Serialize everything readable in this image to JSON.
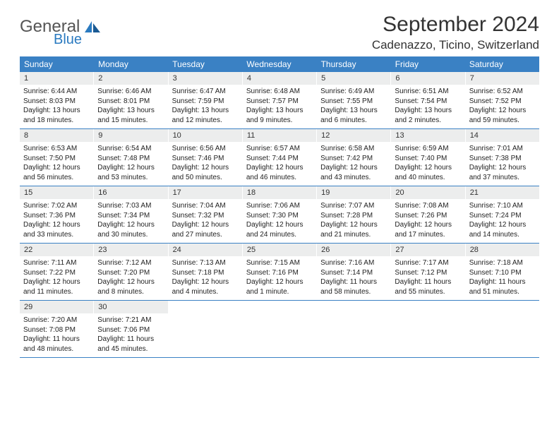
{
  "logo": {
    "main": "General",
    "sub": "Blue"
  },
  "title": "September 2024",
  "location": "Cadenazzo, Ticino, Switzerland",
  "colors": {
    "header_bg": "#3a81c4",
    "daynum_bg": "#eceded",
    "border": "#3a81c4"
  },
  "weekdays": [
    "Sunday",
    "Monday",
    "Tuesday",
    "Wednesday",
    "Thursday",
    "Friday",
    "Saturday"
  ],
  "weeks": [
    [
      {
        "n": "1",
        "sr": "6:44 AM",
        "ss": "8:03 PM",
        "dl": "13 hours and 18 minutes."
      },
      {
        "n": "2",
        "sr": "6:46 AM",
        "ss": "8:01 PM",
        "dl": "13 hours and 15 minutes."
      },
      {
        "n": "3",
        "sr": "6:47 AM",
        "ss": "7:59 PM",
        "dl": "13 hours and 12 minutes."
      },
      {
        "n": "4",
        "sr": "6:48 AM",
        "ss": "7:57 PM",
        "dl": "13 hours and 9 minutes."
      },
      {
        "n": "5",
        "sr": "6:49 AM",
        "ss": "7:55 PM",
        "dl": "13 hours and 6 minutes."
      },
      {
        "n": "6",
        "sr": "6:51 AM",
        "ss": "7:54 PM",
        "dl": "13 hours and 2 minutes."
      },
      {
        "n": "7",
        "sr": "6:52 AM",
        "ss": "7:52 PM",
        "dl": "12 hours and 59 minutes."
      }
    ],
    [
      {
        "n": "8",
        "sr": "6:53 AM",
        "ss": "7:50 PM",
        "dl": "12 hours and 56 minutes."
      },
      {
        "n": "9",
        "sr": "6:54 AM",
        "ss": "7:48 PM",
        "dl": "12 hours and 53 minutes."
      },
      {
        "n": "10",
        "sr": "6:56 AM",
        "ss": "7:46 PM",
        "dl": "12 hours and 50 minutes."
      },
      {
        "n": "11",
        "sr": "6:57 AM",
        "ss": "7:44 PM",
        "dl": "12 hours and 46 minutes."
      },
      {
        "n": "12",
        "sr": "6:58 AM",
        "ss": "7:42 PM",
        "dl": "12 hours and 43 minutes."
      },
      {
        "n": "13",
        "sr": "6:59 AM",
        "ss": "7:40 PM",
        "dl": "12 hours and 40 minutes."
      },
      {
        "n": "14",
        "sr": "7:01 AM",
        "ss": "7:38 PM",
        "dl": "12 hours and 37 minutes."
      }
    ],
    [
      {
        "n": "15",
        "sr": "7:02 AM",
        "ss": "7:36 PM",
        "dl": "12 hours and 33 minutes."
      },
      {
        "n": "16",
        "sr": "7:03 AM",
        "ss": "7:34 PM",
        "dl": "12 hours and 30 minutes."
      },
      {
        "n": "17",
        "sr": "7:04 AM",
        "ss": "7:32 PM",
        "dl": "12 hours and 27 minutes."
      },
      {
        "n": "18",
        "sr": "7:06 AM",
        "ss": "7:30 PM",
        "dl": "12 hours and 24 minutes."
      },
      {
        "n": "19",
        "sr": "7:07 AM",
        "ss": "7:28 PM",
        "dl": "12 hours and 21 minutes."
      },
      {
        "n": "20",
        "sr": "7:08 AM",
        "ss": "7:26 PM",
        "dl": "12 hours and 17 minutes."
      },
      {
        "n": "21",
        "sr": "7:10 AM",
        "ss": "7:24 PM",
        "dl": "12 hours and 14 minutes."
      }
    ],
    [
      {
        "n": "22",
        "sr": "7:11 AM",
        "ss": "7:22 PM",
        "dl": "12 hours and 11 minutes."
      },
      {
        "n": "23",
        "sr": "7:12 AM",
        "ss": "7:20 PM",
        "dl": "12 hours and 8 minutes."
      },
      {
        "n": "24",
        "sr": "7:13 AM",
        "ss": "7:18 PM",
        "dl": "12 hours and 4 minutes."
      },
      {
        "n": "25",
        "sr": "7:15 AM",
        "ss": "7:16 PM",
        "dl": "12 hours and 1 minute."
      },
      {
        "n": "26",
        "sr": "7:16 AM",
        "ss": "7:14 PM",
        "dl": "11 hours and 58 minutes."
      },
      {
        "n": "27",
        "sr": "7:17 AM",
        "ss": "7:12 PM",
        "dl": "11 hours and 55 minutes."
      },
      {
        "n": "28",
        "sr": "7:18 AM",
        "ss": "7:10 PM",
        "dl": "11 hours and 51 minutes."
      }
    ],
    [
      {
        "n": "29",
        "sr": "7:20 AM",
        "ss": "7:08 PM",
        "dl": "11 hours and 48 minutes."
      },
      {
        "n": "30",
        "sr": "7:21 AM",
        "ss": "7:06 PM",
        "dl": "11 hours and 45 minutes."
      },
      {
        "empty": true
      },
      {
        "empty": true
      },
      {
        "empty": true
      },
      {
        "empty": true
      },
      {
        "empty": true
      }
    ]
  ],
  "labels": {
    "sunrise": "Sunrise:",
    "sunset": "Sunset:",
    "daylight": "Daylight:"
  }
}
